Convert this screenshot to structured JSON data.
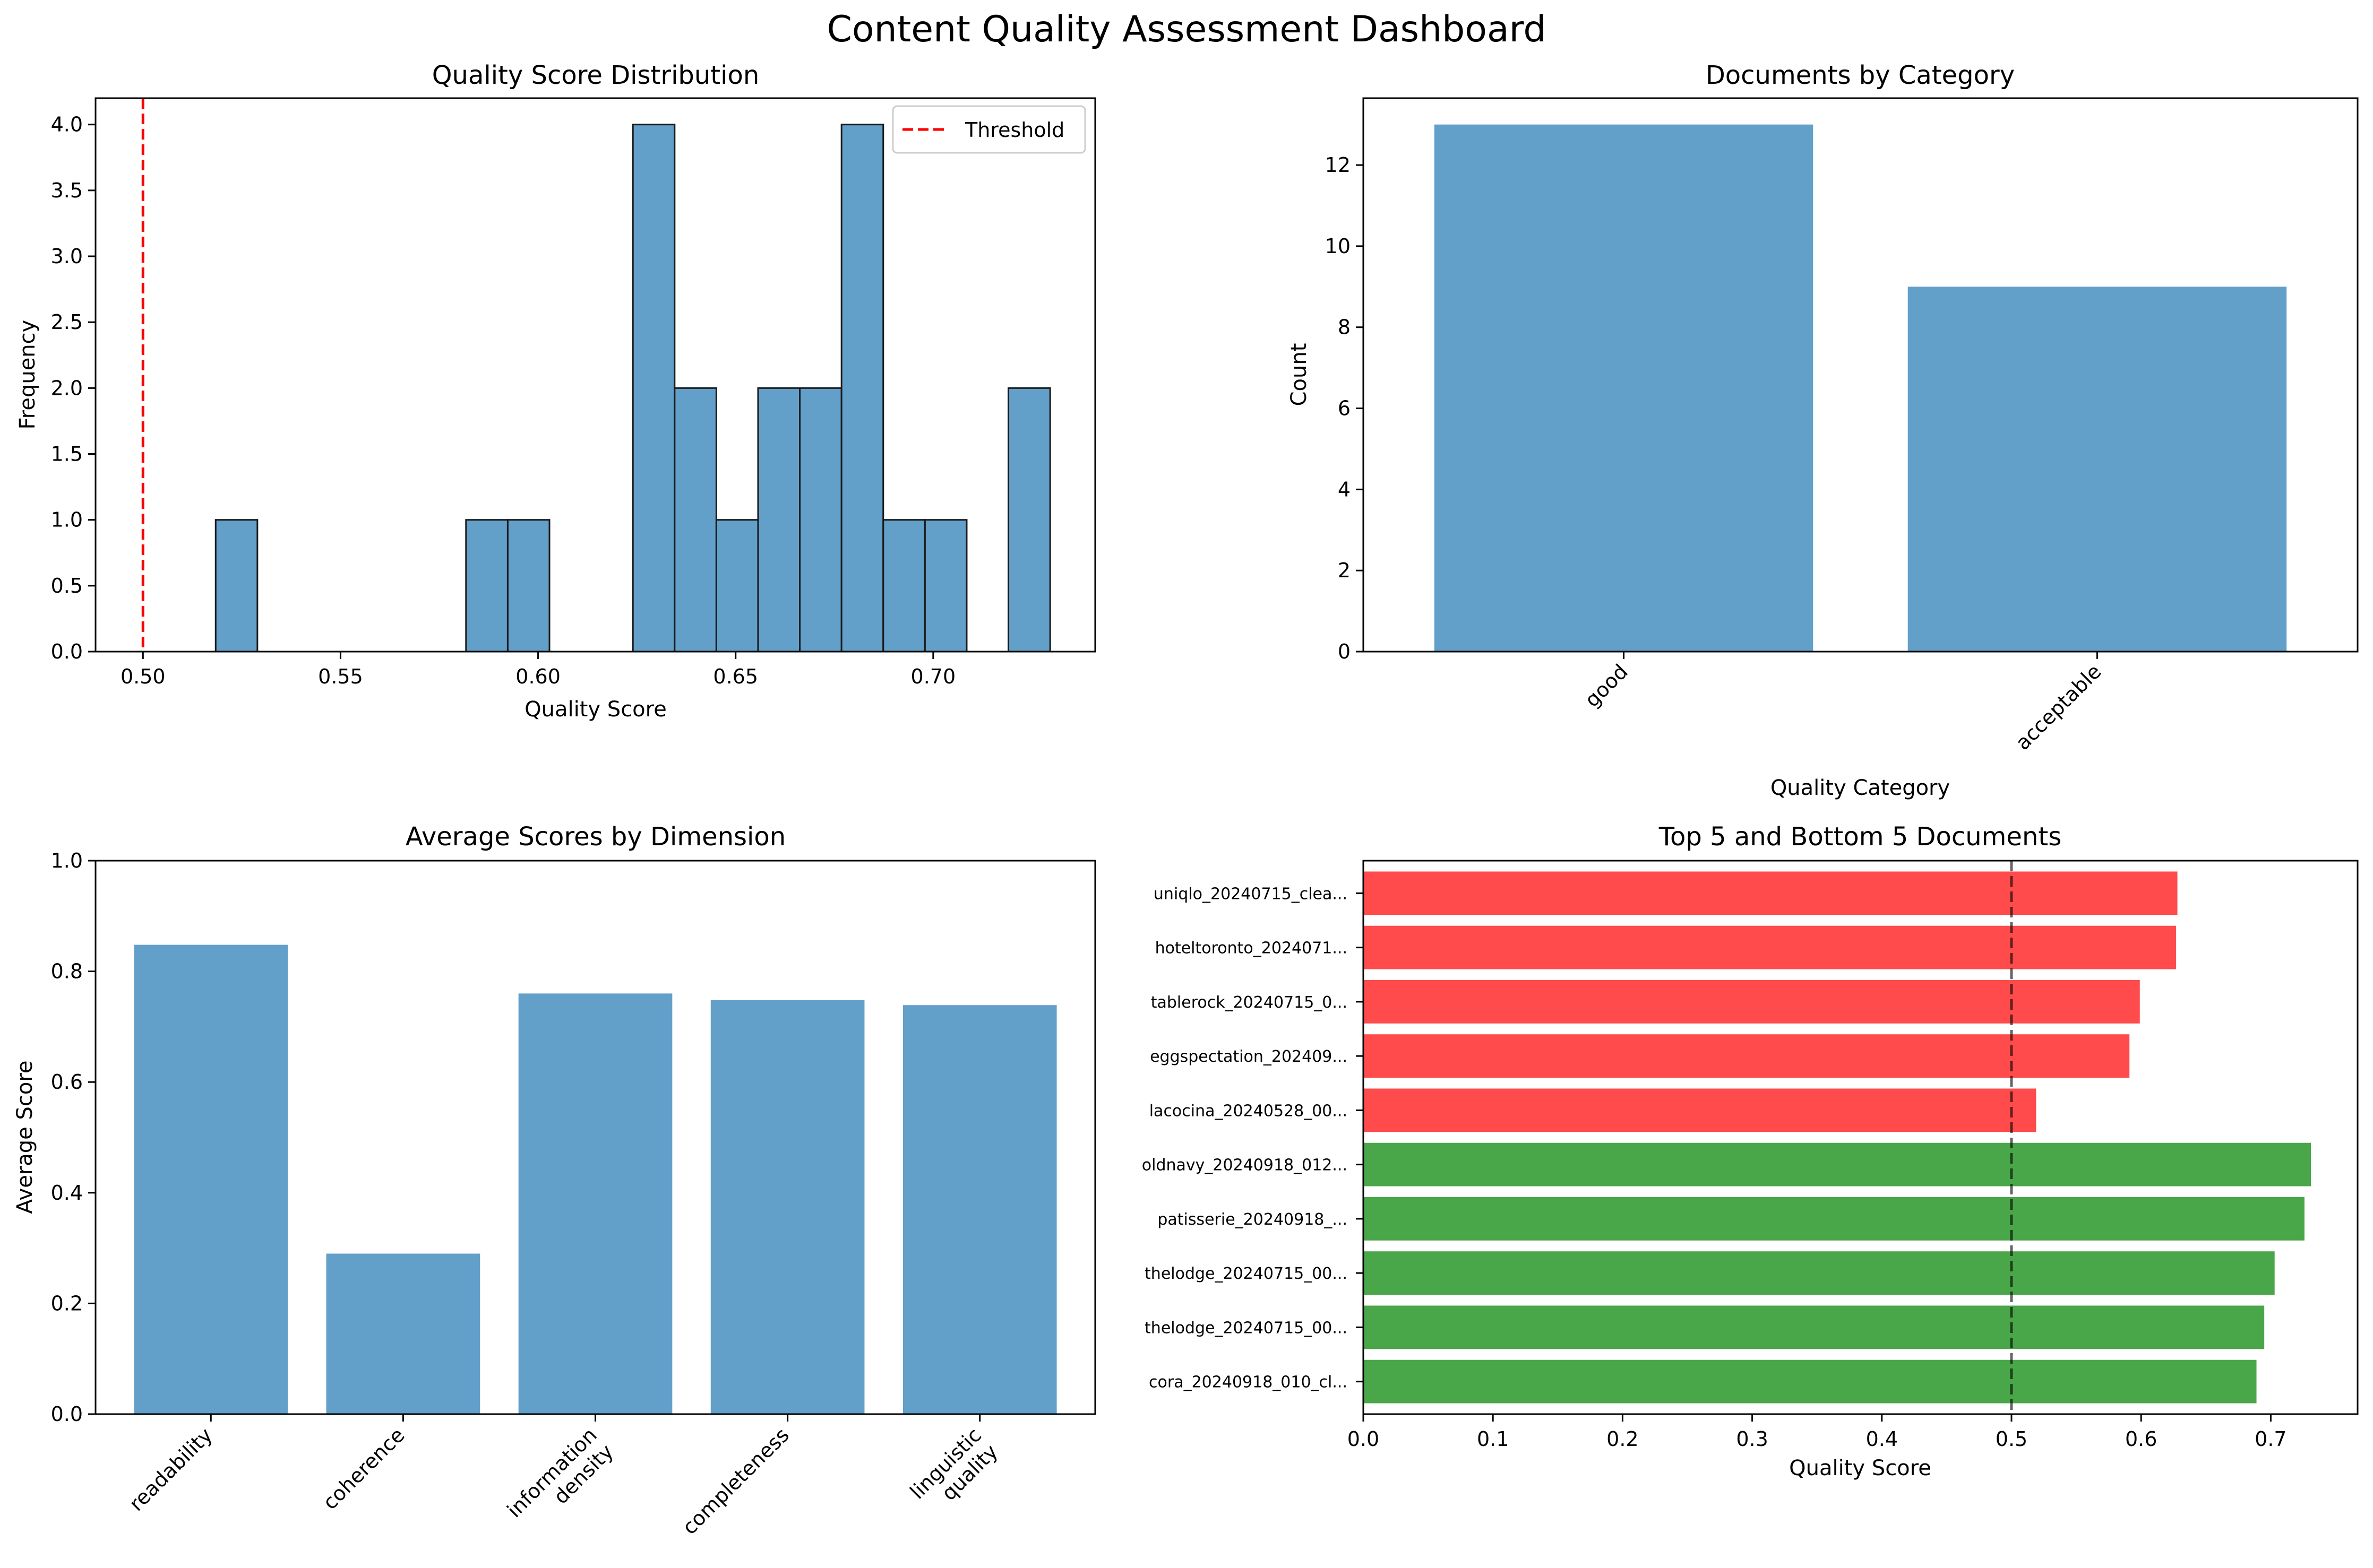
{
  "title": "Content Quality Assessment Dashboard",
  "colors": {
    "bar": "#62a0ca",
    "threshold": "#ff0000",
    "bottom5": "#ff4b4b",
    "top5": "#49a649",
    "edge": "#1a1a1a"
  },
  "chart_data": [
    {
      "type": "bar",
      "subtype": "histogram",
      "title": "Quality Score Distribution",
      "xlabel": "Quality Score",
      "ylabel": "Frequency",
      "xlim": [
        0.488,
        0.741
      ],
      "ylim": [
        0,
        4.2
      ],
      "xticks": [
        "0.50",
        "0.55",
        "0.60",
        "0.65",
        "0.70"
      ],
      "xtick_values": [
        0.5,
        0.55,
        0.6,
        0.65,
        0.7
      ],
      "yticks": [
        "0.0",
        "0.5",
        "1.0",
        "1.5",
        "2.0",
        "2.5",
        "3.0",
        "3.5",
        "4.0"
      ],
      "ytick_values": [
        0,
        0.5,
        1,
        1.5,
        2,
        2.5,
        3,
        3.5,
        4
      ],
      "bin_start": 0.5184,
      "bin_width": 0.01056,
      "counts": [
        1,
        0,
        0,
        0,
        0,
        0,
        1,
        1,
        0,
        0,
        4,
        2,
        1,
        2,
        2,
        4,
        1,
        1,
        0,
        2
      ],
      "threshold": 0.5,
      "legend": {
        "placement": "top-right",
        "label": "Threshold"
      }
    },
    {
      "type": "bar",
      "title": "Documents by Category",
      "xlabel": "Quality Category",
      "ylabel": "Count",
      "categories": [
        "good",
        "acceptable"
      ],
      "values": [
        13,
        9
      ],
      "ylim": [
        0,
        13.65
      ],
      "yticks": [
        "0",
        "2",
        "4",
        "6",
        "8",
        "10",
        "12"
      ],
      "ytick_values": [
        0,
        2,
        4,
        6,
        8,
        10,
        12
      ]
    },
    {
      "type": "bar",
      "title": "Average Scores by Dimension",
      "xlabel": "",
      "ylabel": "Average Score",
      "categories": [
        "readability",
        "coherence",
        "information\ndensity",
        "completeness",
        "linguistic\nquality"
      ],
      "values": [
        0.848,
        0.29,
        0.76,
        0.748,
        0.739
      ],
      "ylim": [
        0,
        1.0
      ],
      "yticks": [
        "0.0",
        "0.2",
        "0.4",
        "0.6",
        "0.8",
        "1.0"
      ],
      "ytick_values": [
        0,
        0.2,
        0.4,
        0.6,
        0.8,
        1.0
      ]
    },
    {
      "type": "bar",
      "orientation": "horizontal",
      "title": "Top 5 and Bottom 5 Documents",
      "xlabel": "Quality Score",
      "ylabel": "",
      "categories": [
        "uniqlo_20240715_clea...",
        "hoteltoronto_2024071...",
        "tablerock_20240715_0...",
        "eggspectation_202409...",
        "lacocina_20240528_00...",
        "oldnavy_20240918_012...",
        "patisserie_20240918_...",
        "thelodge_20240715_00...",
        "thelodge_20240715_00...",
        "cora_20240918_010_cl..."
      ],
      "values": [
        0.628,
        0.627,
        0.599,
        0.591,
        0.519,
        0.731,
        0.726,
        0.703,
        0.695,
        0.689
      ],
      "groups": [
        "bottom",
        "bottom",
        "bottom",
        "bottom",
        "bottom",
        "top",
        "top",
        "top",
        "top",
        "top"
      ],
      "threshold": 0.5,
      "xlim": [
        0,
        0.767
      ],
      "xticks": [
        "0.0",
        "0.1",
        "0.2",
        "0.3",
        "0.4",
        "0.5",
        "0.6",
        "0.7"
      ],
      "xtick_values": [
        0,
        0.1,
        0.2,
        0.3,
        0.4,
        0.5,
        0.6,
        0.7
      ]
    }
  ]
}
